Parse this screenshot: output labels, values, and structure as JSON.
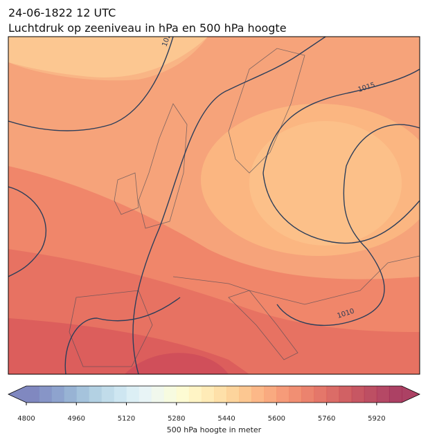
{
  "header": {
    "title": "24-06-1822 12 UTC",
    "subtitle": "Luchtdruk op zeeniveau in hPa en 500 hPa hoogte"
  },
  "map": {
    "contour_labels": [
      "1020",
      "1015",
      "1010"
    ]
  },
  "colorbar": {
    "range": [
      4800,
      6000
    ],
    "ticks": [
      4800,
      4960,
      5120,
      5280,
      5440,
      5600,
      5760,
      5920
    ],
    "label": "500 hPa hoogte in meter",
    "colors": [
      "#6a73b5",
      "#7283bd",
      "#7a93c5",
      "#86a6cd",
      "#95b8d6",
      "#a6c9de",
      "#b6d6e6",
      "#c6e2ee",
      "#d6ecf3",
      "#e4f2f4",
      "#eef7ea",
      "#f6fadb",
      "#fdfacb",
      "#fff2bb",
      "#ffe7aa",
      "#fedb9a",
      "#fdcc8b",
      "#fcbd7e",
      "#fbac73",
      "#f89b6a",
      "#f48a61",
      "#ee7b5a",
      "#e76d55",
      "#df5f50",
      "#d5524c",
      "#c94549",
      "#bd3a48",
      "#b23048",
      "#a8284a",
      "#9e2049"
    ]
  }
}
